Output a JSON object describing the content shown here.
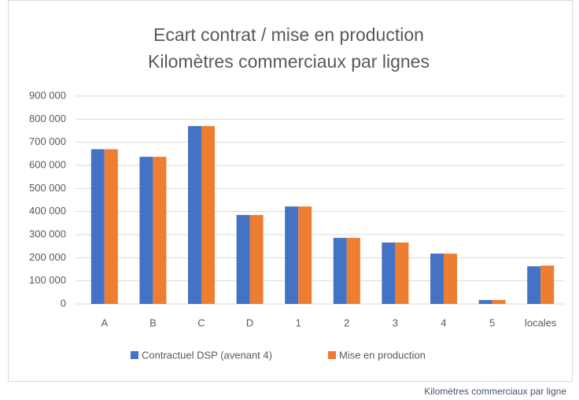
{
  "chart_data": {
    "type": "bar",
    "title": [
      "Ecart contrat / mise en production",
      "Kilomètres commerciaux par lignes"
    ],
    "categories": [
      "A",
      "B",
      "C",
      "D",
      "1",
      "2",
      "3",
      "4",
      "5",
      "locales"
    ],
    "series": [
      {
        "name": "Contractuel DSP (avenant 4)",
        "color": "#4472c4",
        "values": [
          670000,
          637000,
          770000,
          385000,
          422000,
          286000,
          266000,
          218000,
          17000,
          163000
        ]
      },
      {
        "name": "Mise en production",
        "color": "#ed7d31",
        "values": [
          670000,
          637000,
          770000,
          385000,
          422000,
          286000,
          266000,
          218000,
          17000,
          166000
        ]
      }
    ],
    "ylim": [
      0,
      900000
    ],
    "yticks": [
      0,
      {
        "value": 100000,
        "label": "100 000"
      },
      {
        "value": 200000,
        "label": "200 000"
      },
      {
        "value": 300000,
        "label": "300 000"
      },
      {
        "value": 400000,
        "label": "400 000"
      },
      {
        "value": 500000,
        "label": "500 000"
      },
      {
        "value": 600000,
        "label": "600 000"
      },
      {
        "value": 700000,
        "label": "700 000"
      },
      {
        "value": 800000,
        "label": "800 000"
      },
      {
        "value": 900000,
        "label": "900 000"
      }
    ],
    "grid": true,
    "legend": "bottom",
    "caption": "Kilomètres commerciaux par ligne"
  }
}
